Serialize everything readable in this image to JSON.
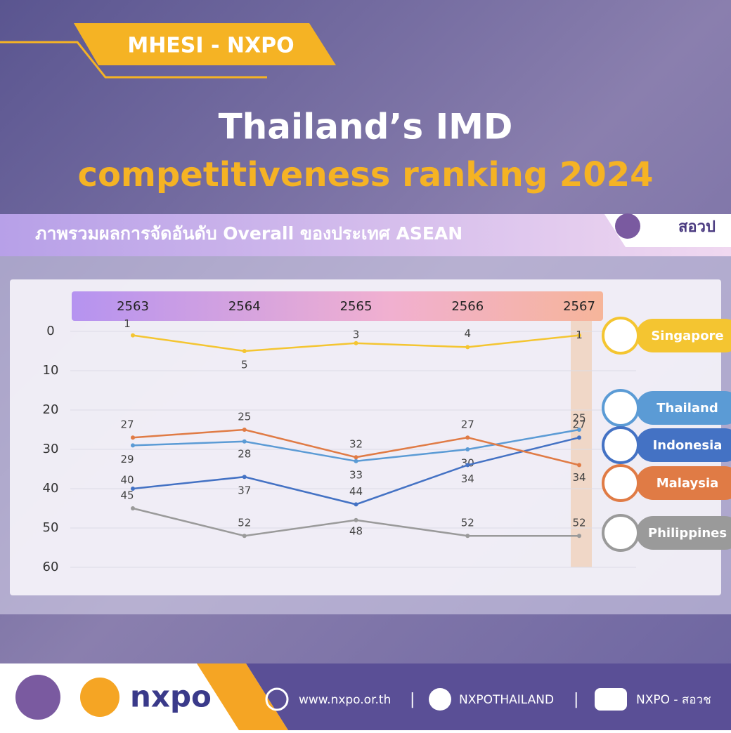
{
  "header": {
    "tag": "MHESI - NXPO",
    "title": "Thailand’s IMD",
    "title_highlight": "competitiveness ranking 2024",
    "banner_logo": "สอวป"
  },
  "chart_data": {
    "type": "line",
    "subtitle": "ภาพรวมผลการจัดอันดับ Overall ของประเทศ ASEAN",
    "categories": [
      "2563",
      "2564",
      "2565",
      "2566",
      "2567"
    ],
    "series": [
      {
        "name": "Singapore",
        "color": "#f4c531",
        "values": [
          1,
          5,
          3,
          4,
          1
        ]
      },
      {
        "name": "Thailand",
        "color": "#5b9bd5",
        "values": [
          29,
          28,
          33,
          30,
          25
        ]
      },
      {
        "name": "Indonesia",
        "color": "#4472c4",
        "values": [
          40,
          37,
          44,
          34,
          27
        ]
      },
      {
        "name": "Malaysia",
        "color": "#e07b45",
        "values": [
          27,
          25,
          32,
          27,
          34
        ]
      },
      {
        "name": "Philippines",
        "color": "#9a9a9a",
        "values": [
          45,
          52,
          48,
          52,
          52
        ]
      }
    ],
    "ylim": [
      0,
      60
    ],
    "yticks": [
      0,
      10,
      20,
      30,
      40,
      50,
      60
    ],
    "invert_y": true,
    "grid": true,
    "legend": "right"
  },
  "footer": {
    "brand": "nxpo",
    "website": "www.nxpo.or.th",
    "facebook": "NXPOTHAILAND",
    "youtube": "NXPO - สอวช"
  }
}
